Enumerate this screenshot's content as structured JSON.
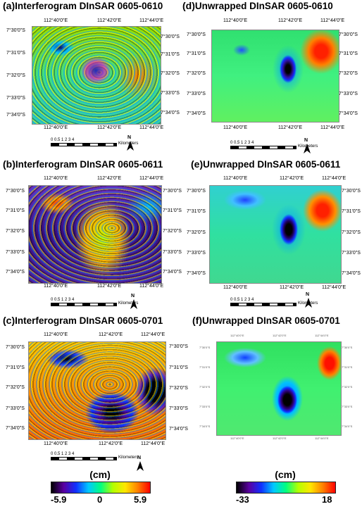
{
  "panels": [
    {
      "id": "a",
      "label": "(a)",
      "title": "Interferogram DInSAR 0605-0610",
      "top_ticks": [
        "112°40'0\"E",
        "112°42'0\"E",
        "112°44'0\"E"
      ],
      "bottom_ticks": [
        "112°40'0\"E",
        "112°42'0\"E",
        "112°44'0\"E"
      ],
      "left_ticks": [
        "7°30'0\"S",
        "7°31'0\"S",
        "7°32'0\"S",
        "7°33'0\"S",
        "7°34'0\"S"
      ],
      "right_ticks": [
        "7°30'0\"S",
        "7°31'0\"S",
        "7°32'0\"S",
        "7°33'0\"S",
        "7°34'0\"S"
      ]
    },
    {
      "id": "d",
      "label": "(d)",
      "title": "Unwrapped DInSAR 0605-0610",
      "top_ticks": [
        "112°40'0\"E",
        "112°42'0\"E",
        "112°44'0\"E"
      ],
      "bottom_ticks": [
        "112°40'0\"E",
        "112°42'0\"E",
        "112°44'0\"E"
      ],
      "left_ticks": [
        "7°30'0\"S",
        "7°31'0\"S",
        "7°32'0\"S",
        "7°33'0\"S",
        "7°34'0\"S"
      ],
      "right_ticks": [
        "7°30'0\"S",
        "7°31'0\"S",
        "7°32'0\"S",
        "7°33'0\"S",
        "7°34'0\"S"
      ]
    },
    {
      "id": "b",
      "label": "(b)",
      "title": "Interferogram DInSAR 0605-0611",
      "top_ticks": [
        "112°40'0\"E",
        "112°42'0\"E",
        "112°44'0\"E"
      ],
      "bottom_ticks": [
        "112°40'0\"E",
        "112°42'0\"E",
        "112°44'0\"E"
      ],
      "left_ticks": [
        "7°30'0\"S",
        "7°31'0\"S",
        "7°32'0\"S",
        "7°33'0\"S",
        "7°34'0\"S"
      ],
      "right_ticks": [
        "7°30'0\"S",
        "7°31'0\"S",
        "7°32'0\"S",
        "7°33'0\"S",
        "7°34'0\"S"
      ]
    },
    {
      "id": "e",
      "label": "(e)",
      "title": "Unwrapped DInSAR 0605-0611",
      "top_ticks": [
        "112°40'0\"E",
        "112°42'0\"E",
        "112°44'0\"E"
      ],
      "bottom_ticks": [
        "112°40'0\"E",
        "112°42'0\"E",
        "112°44'0\"E"
      ],
      "left_ticks": [
        "7°30'0\"S",
        "7°31'0\"S",
        "7°32'0\"S",
        "7°33'0\"S",
        "7°34'0\"S"
      ],
      "right_ticks": [
        "7°30'0\"S",
        "7°31'0\"S",
        "7°32'0\"S",
        "7°33'0\"S",
        "7°34'0\"S"
      ]
    },
    {
      "id": "c",
      "label": "(c)",
      "title": "Interferogram DInSAR 0605-0701",
      "top_ticks": [
        "112°40'0\"E",
        "112°42'0\"E",
        "112°44'0\"E"
      ],
      "bottom_ticks": [
        "112°40'0\"E",
        "112°42'0\"E",
        "112°44'0\"E"
      ],
      "left_ticks": [
        "7°30'0\"S",
        "7°31'0\"S",
        "7°32'0\"S",
        "7°33'0\"S",
        "7°34'0\"S"
      ],
      "right_ticks": [
        "7°30'0\"S",
        "7°31'0\"S",
        "7°32'0\"S",
        "7°33'0\"S",
        "7°34'0\"S"
      ]
    },
    {
      "id": "f",
      "label": "(f)",
      "title": "Unwrapped DInSAR 0605-0701",
      "top_ticks": [
        "112°40'0\"E",
        "112°42'0\"E",
        "112°44'0\"E"
      ],
      "bottom_ticks": [
        "112°40'0\"E",
        "112°42'0\"E",
        "112°44'0\"E"
      ],
      "left_ticks": [
        "7°30'0\"S",
        "7°31'0\"S",
        "7°32'0\"S",
        "7°33'0\"S",
        "7°34'0\"S"
      ],
      "right_ticks": [
        "7°30'0\"S",
        "7°31'0\"S",
        "7°32'0\"S",
        "7°33'0\"S",
        "7°34'0\"S"
      ]
    }
  ],
  "scalebar": {
    "numbers": "0 0.5 1      2      3      4",
    "unit": "Kilometers"
  },
  "north_label": "N",
  "legend_left": {
    "unit": "(cm)",
    "min": "-5.9",
    "mid": "0",
    "max": "5.9",
    "colors": [
      "#000000",
      "#5a00a0",
      "#1030ff",
      "#00c8ff",
      "#00ff80",
      "#b4ff00",
      "#ffe600",
      "#ff8000",
      "#ff0000"
    ]
  },
  "legend_right": {
    "unit": "(cm)",
    "min": "-33",
    "max": "18",
    "colors": [
      "#000000",
      "#5a00a0",
      "#1030ff",
      "#00c8ff",
      "#00ff80",
      "#b4ff00",
      "#ffe600",
      "#ff8000",
      "#ff0000"
    ]
  }
}
